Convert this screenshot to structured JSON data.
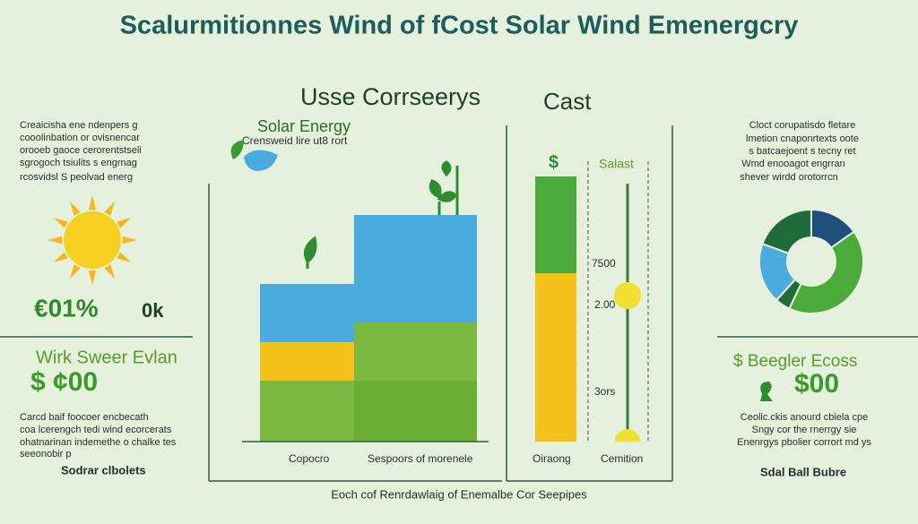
{
  "header": {
    "title": "Scalurmitionnes Wind of fCost Solar  Wind  Emenergcry"
  },
  "left": {
    "intro": [
      "Creaicisha ene ndenpers g",
      "cooolinbation or ovisnencar",
      "orooeb gaoce cerorentstseli",
      "sgrogoch tsiulits s engrnag",
      "rcosvidsl S peolvad energ"
    ],
    "stat": "€01%",
    "stat_unit": "0k",
    "heading": "Wirk  Sweer Evlan",
    "amount": "$  ¢00",
    "details": [
      "Carcd baif foocoer encbecath",
      "coa lcerengch tedi wind ecorcerats",
      "ohatnarinan indemethe o chalke tes",
      "seeonobir p"
    ],
    "caption": "Sodrar clbolets"
  },
  "usage": {
    "title": "Usse Corrseerys",
    "legend_title": "Solar Energy",
    "legend_subtitle": "Crensweid lire ut8 rort",
    "labels": [
      "Copocro",
      "Sespoors of morenele"
    ]
  },
  "cost": {
    "title": "Cast",
    "icon": "$",
    "series_label": "Salast",
    "levels": [
      "7500",
      "2.00",
      "3ors"
    ],
    "labels": [
      "Oiraong",
      "Cemition"
    ]
  },
  "right": {
    "intro": [
      "Cloct corupatisdo fletare",
      "lmetion cnaponrtexts oote",
      "s batcaejoent s tecny ret",
      "Wmd enooagot engrran",
      "shever wirdd orotorrcn"
    ],
    "heading": "$  Beegler  Ecoss",
    "amount": "$00",
    "details": [
      "Ceolic.ckis anourd cbiela cpe",
      "Sngy  cor the rnerrgy sie",
      "Enenrgys pbolier corrort md ys"
    ],
    "caption": "Sdal Ball Bubre"
  },
  "footer": "Eoch cof Renrdawlaig of Enemalbe Cor Seepipes"
}
